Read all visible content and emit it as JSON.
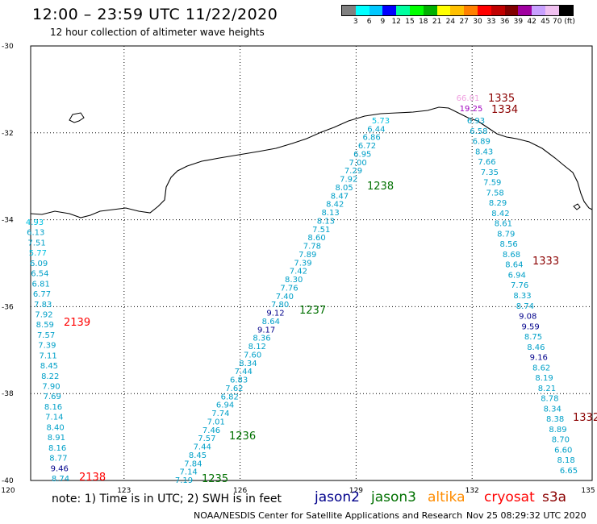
{
  "header": {
    "title": "12:00 – 23:59 UTC 11/22/2020",
    "subtitle": "12 hour collection of altimeter wave heights"
  },
  "legend": {
    "labels": [
      "3",
      "6",
      "9",
      "12",
      "15",
      "18",
      "21",
      "24",
      "27",
      "30",
      "33",
      "36",
      "39",
      "42",
      "45",
      "70 (ft)"
    ],
    "colors": [
      "#808080",
      "#00ffff",
      "#00c8ff",
      "#0000ff",
      "#00ffa0",
      "#00ff00",
      "#00b000",
      "#ffff00",
      "#ffc000",
      "#ff8000",
      "#ff0000",
      "#c00000",
      "#800000",
      "#a000a0",
      "#c8a0ff",
      "#f0c0f0",
      "#000000"
    ]
  },
  "axes": {
    "lon_ticks": [
      "120",
      "123",
      "126",
      "129",
      "132",
      "135"
    ],
    "lat_ticks": [
      "-30",
      "-32",
      "-34",
      "-36",
      "-38",
      "-40"
    ]
  },
  "track_colors": {
    "jason2": "#00008b",
    "jason3": "#007000",
    "altika": "#ff8c00",
    "cryosat": "#ff0000",
    "s3a": "#8b0000"
  },
  "tracks": [
    {
      "id": "t1",
      "time": "2139",
      "time_color": "#ff0000",
      "time_pos": [
        79,
        404
      ],
      "points": [
        [
          "4.93",
          "#00c0e0"
        ],
        [
          "6.13",
          "#00a0c8"
        ],
        [
          "7.51",
          "#00a0c8"
        ],
        [
          "5.77",
          "#00c0e0"
        ],
        [
          "6.09",
          "#00a0c8"
        ],
        [
          "6.54",
          "#00a0c8"
        ],
        [
          "6.81",
          "#00a0c8"
        ],
        [
          "6.77",
          "#00a0c8"
        ],
        [
          "7.83",
          "#00a0c8"
        ],
        [
          "7.92",
          "#00a0c8"
        ],
        [
          "8.59",
          "#00a0c8"
        ],
        [
          "7.57",
          "#00a0c8"
        ],
        [
          "7.39",
          "#00a0c8"
        ],
        [
          "7.11",
          "#00a0c8"
        ],
        [
          "8.45",
          "#00a0c8"
        ],
        [
          "8.22",
          "#00a0c8"
        ],
        [
          "7.90",
          "#00a0c8"
        ],
        [
          "7.69",
          "#00a0c8"
        ],
        [
          "8.16",
          "#00a0c8"
        ],
        [
          "7.14",
          "#00a0c8"
        ],
        [
          "8.40",
          "#00a0c8"
        ],
        [
          "8.91",
          "#00a0c8"
        ],
        [
          "8.16",
          "#00a0c8"
        ],
        [
          "8.77",
          "#00a0c8"
        ],
        [
          "9.46",
          "#00008b"
        ],
        [
          "8.74",
          "#00a0c8"
        ]
      ]
    },
    {
      "id": "t2",
      "time": "2138",
      "time_color": "#ff0000",
      "time_pos": [
        98,
        596
      ]
    },
    {
      "id": "t3",
      "time": "1238",
      "time_color": "#007000",
      "time_pos": [
        455,
        235
      ],
      "points": [
        [
          "5.73",
          "#00c0e0"
        ],
        [
          "6.44",
          "#00a0c8"
        ],
        [
          "6.86",
          "#00a0c8"
        ],
        [
          "6.72",
          "#00a0c8"
        ],
        [
          "6.95",
          "#00a0c8"
        ],
        [
          "7.00",
          "#00a0c8"
        ],
        [
          "7.29",
          "#00a0c8"
        ],
        [
          "7.92",
          "#00a0c8"
        ],
        [
          "8.05",
          "#00a0c8"
        ],
        [
          "8.47",
          "#00a0c8"
        ],
        [
          "8.42",
          "#00a0c8"
        ],
        [
          "8.13",
          "#00a0c8"
        ],
        [
          "8.13",
          "#00a0c8"
        ],
        [
          "7.51",
          "#00a0c8"
        ],
        [
          "8.60",
          "#00a0c8"
        ],
        [
          "7.78",
          "#00a0c8"
        ],
        [
          "7.89",
          "#00a0c8"
        ],
        [
          "7.39",
          "#00a0c8"
        ],
        [
          "7.42",
          "#00a0c8"
        ],
        [
          "8.30",
          "#00a0c8"
        ],
        [
          "7.76",
          "#00a0c8"
        ],
        [
          "7.40",
          "#00a0c8"
        ],
        [
          "7.80",
          "#00a0c8"
        ],
        [
          "9.12",
          "#00008b"
        ],
        [
          "8.64",
          "#00a0c8"
        ],
        [
          "9.17",
          "#00008b"
        ],
        [
          "8.36",
          "#00a0c8"
        ],
        [
          "8.12",
          "#00a0c8"
        ],
        [
          "7.60",
          "#00a0c8"
        ],
        [
          "8.34",
          "#00a0c8"
        ],
        [
          "7.44",
          "#00a0c8"
        ],
        [
          "6.83",
          "#00a0c8"
        ],
        [
          "7.62",
          "#00a0c8"
        ],
        [
          "6.82",
          "#00a0c8"
        ],
        [
          "6.94",
          "#00a0c8"
        ],
        [
          "7.74",
          "#00a0c8"
        ],
        [
          "7.01",
          "#00a0c8"
        ],
        [
          "7.46",
          "#00a0c8"
        ],
        [
          "7.57",
          "#00a0c8"
        ],
        [
          "7.44",
          "#00a0c8"
        ],
        [
          "8.45",
          "#00a0c8"
        ],
        [
          "7.84",
          "#00a0c8"
        ],
        [
          "7.14",
          "#00a0c8"
        ],
        [
          "7.19",
          "#00a0c8"
        ]
      ]
    },
    {
      "id": "t4",
      "time": "1237",
      "time_color": "#007000",
      "time_pos": [
        371,
        389
      ]
    },
    {
      "id": "t5",
      "time": "1236",
      "time_color": "#007000",
      "time_pos": [
        284,
        545
      ]
    },
    {
      "id": "t6",
      "time": "1235",
      "time_color": "#007000",
      "time_pos": [
        250,
        598
      ]
    },
    {
      "id": "t7",
      "time": "1335",
      "time_color": "#8b0000",
      "time_pos": [
        605,
        126
      ],
      "points": [
        [
          "66.01",
          "#f0a0e0"
        ],
        [
          "19.25",
          "#a000c0"
        ]
      ]
    },
    {
      "id": "t8",
      "time": "1334",
      "time_color": "#8b0000",
      "time_pos": [
        609,
        140
      ]
    },
    {
      "id": "t9",
      "time": "1333",
      "time_color": "#8b0000",
      "time_pos": [
        660,
        328
      ],
      "points": [
        [
          "6.93",
          "#00a0c8"
        ],
        [
          "6.58",
          "#00a0c8"
        ],
        [
          "6.89",
          "#00a0c8"
        ],
        [
          "8.43",
          "#00a0c8"
        ],
        [
          "7.66",
          "#00a0c8"
        ],
        [
          "7.35",
          "#00a0c8"
        ],
        [
          "7.59",
          "#00a0c8"
        ],
        [
          "7.58",
          "#00a0c8"
        ],
        [
          "8.29",
          "#00a0c8"
        ],
        [
          "8.42",
          "#00a0c8"
        ],
        [
          "8.61",
          "#00a0c8"
        ],
        [
          "8.79",
          "#00a0c8"
        ],
        [
          "8.56",
          "#00a0c8"
        ],
        [
          "8.68",
          "#00a0c8"
        ],
        [
          "8.64",
          "#00a0c8"
        ],
        [
          "6.94",
          "#00a0c8"
        ],
        [
          "7.76",
          "#00a0c8"
        ],
        [
          "8.33",
          "#00a0c8"
        ],
        [
          "8.74",
          "#00a0c8"
        ],
        [
          "9.08",
          "#00008b"
        ],
        [
          "9.59",
          "#00008b"
        ],
        [
          "8.75",
          "#00a0c8"
        ],
        [
          "8.46",
          "#00a0c8"
        ],
        [
          "9.16",
          "#00008b"
        ],
        [
          "8.62",
          "#00a0c8"
        ],
        [
          "8.19",
          "#00a0c8"
        ],
        [
          "8.21",
          "#00a0c8"
        ],
        [
          "8.78",
          "#00a0c8"
        ],
        [
          "8.34",
          "#00a0c8"
        ],
        [
          "8.38",
          "#00a0c8"
        ],
        [
          "8.89",
          "#00a0c8"
        ],
        [
          "8.70",
          "#00a0c8"
        ],
        [
          "6.60",
          "#00a0c8"
        ],
        [
          "8.18",
          "#00a0c8"
        ],
        [
          "6.65",
          "#00a0c8"
        ]
      ]
    },
    {
      "id": "t10",
      "time": "1332",
      "time_color": "#8b0000",
      "time_pos": [
        710,
        522
      ]
    }
  ],
  "footer": {
    "note": "note:  1) Time is in UTC;  2) SWH is in feet",
    "satellites": [
      "jason2",
      "jason3",
      "altika",
      "cryosat",
      "s3a"
    ],
    "org": "NOAA/NESDIS Center for Satellite Applications and Research",
    "timestamp": "Nov 25 08:29:32 UTC 2020"
  }
}
